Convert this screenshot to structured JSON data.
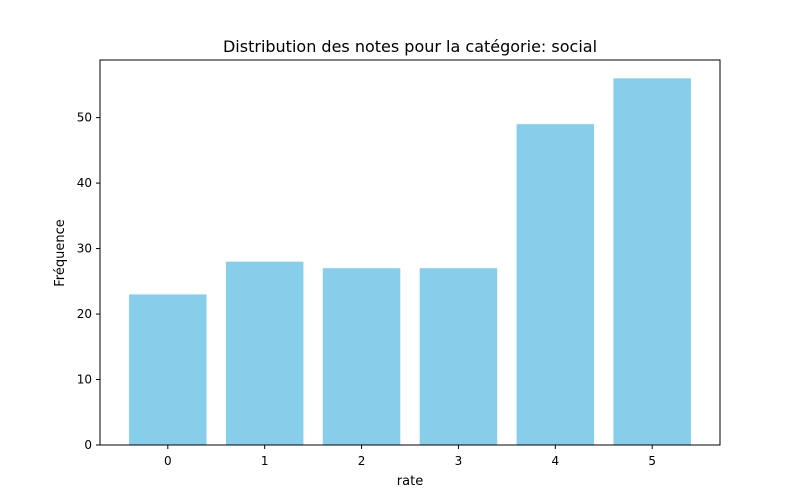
{
  "chart_data": {
    "type": "bar",
    "title": "Distribution des notes pour la catégorie: social",
    "xlabel": "rate",
    "ylabel": "Fréquence",
    "categories": [
      "0",
      "1",
      "2",
      "3",
      "4",
      "5"
    ],
    "values": [
      23,
      28,
      27,
      27,
      49,
      56
    ],
    "ylim": [
      0,
      58.8
    ],
    "yticks": [
      0,
      10,
      20,
      30,
      40,
      50
    ],
    "bar_color": "#87ceeb",
    "grid": false,
    "legend": "none"
  }
}
